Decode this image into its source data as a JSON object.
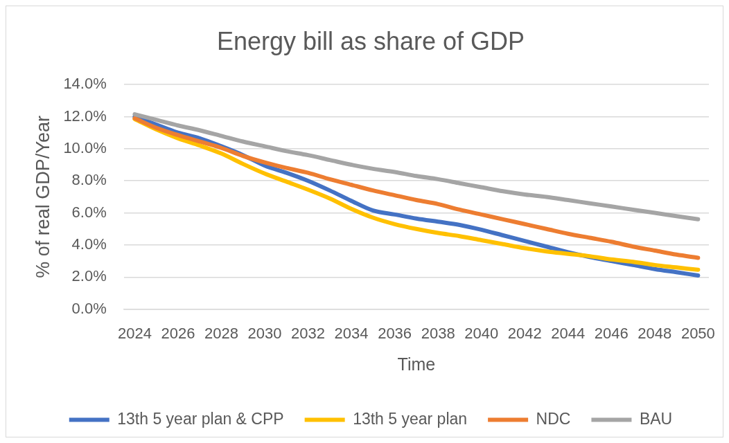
{
  "chart_data": {
    "type": "line",
    "title": "Energy bill as share of GDP",
    "xlabel": "Time",
    "ylabel": "% of real GDP/Year",
    "x": [
      2024,
      2025,
      2026,
      2027,
      2028,
      2029,
      2030,
      2031,
      2032,
      2033,
      2034,
      2035,
      2036,
      2037,
      2038,
      2039,
      2040,
      2041,
      2042,
      2043,
      2044,
      2045,
      2046,
      2047,
      2048,
      2049,
      2050
    ],
    "xlim": [
      2023.5,
      2050.5
    ],
    "xticks": [
      2024,
      2026,
      2028,
      2030,
      2032,
      2034,
      2036,
      2038,
      2040,
      2042,
      2044,
      2046,
      2048,
      2050
    ],
    "ylim": [
      0,
      14
    ],
    "yticks": [
      {
        "value": 0,
        "label": "0.0%"
      },
      {
        "value": 2,
        "label": "2.0%"
      },
      {
        "value": 4,
        "label": "4.0%"
      },
      {
        "value": 6,
        "label": "6.0%"
      },
      {
        "value": 8,
        "label": "8.0%"
      },
      {
        "value": 10,
        "label": "10.0%"
      },
      {
        "value": 12,
        "label": "12.0%"
      },
      {
        "value": 14,
        "label": "14.0%"
      }
    ],
    "grid": "y",
    "legend": "bottom",
    "marker": "none",
    "line_style": "solid",
    "series": [
      {
        "name": "13th 5 year plan & CPP",
        "color": "#4472c4",
        "values": [
          12.0,
          11.5,
          11.0,
          10.65,
          10.15,
          9.6,
          8.95,
          8.5,
          8.0,
          7.4,
          6.75,
          6.15,
          5.9,
          5.65,
          5.45,
          5.25,
          4.95,
          4.6,
          4.25,
          3.9,
          3.55,
          3.25,
          3.0,
          2.75,
          2.5,
          2.3,
          2.1
        ]
      },
      {
        "name": "13th 5 year plan",
        "color": "#ffc000",
        "values": [
          11.85,
          11.2,
          10.65,
          10.2,
          9.7,
          9.05,
          8.45,
          7.95,
          7.45,
          6.9,
          6.25,
          5.7,
          5.3,
          5.0,
          4.75,
          4.55,
          4.3,
          4.05,
          3.8,
          3.6,
          3.45,
          3.3,
          3.1,
          2.95,
          2.75,
          2.6,
          2.45
        ]
      },
      {
        "name": "NDC",
        "color": "#ed7d31",
        "values": [
          11.9,
          11.3,
          10.85,
          10.45,
          10.05,
          9.55,
          9.15,
          8.8,
          8.5,
          8.1,
          7.75,
          7.4,
          7.1,
          6.8,
          6.55,
          6.2,
          5.9,
          5.6,
          5.3,
          5.0,
          4.7,
          4.45,
          4.2,
          3.9,
          3.65,
          3.4,
          3.2
        ]
      },
      {
        "name": "BAU",
        "color": "#a5a5a5",
        "values": [
          12.15,
          11.8,
          11.45,
          11.15,
          10.8,
          10.45,
          10.15,
          9.85,
          9.6,
          9.3,
          9.0,
          8.75,
          8.55,
          8.3,
          8.1,
          7.85,
          7.6,
          7.35,
          7.15,
          7.0,
          6.8,
          6.6,
          6.4,
          6.2,
          6.0,
          5.8,
          5.6
        ]
      }
    ]
  }
}
